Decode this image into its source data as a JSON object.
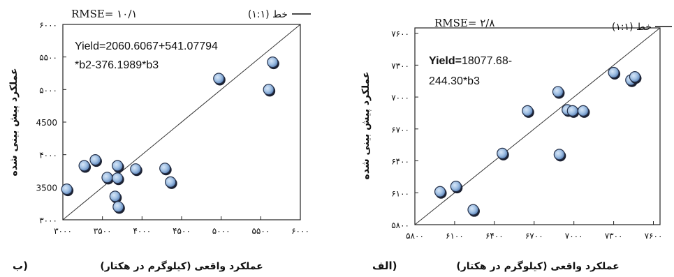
{
  "line_label": "خط (۱:۱)",
  "chart_data": [
    {
      "panel_label": "ب)",
      "type": "scatter",
      "title": "",
      "rmse_text": "RMSE= ۱۰/۱",
      "equation_lines": [
        "Yield=2060.6067+541.07794",
        "*b2-376.1989*b3"
      ],
      "equation_bold_prefix": "",
      "xlabel": "عملکرد واقعی (کیلوگرم در هکتار)",
      "ylabel": "عملکرد پیش بینی شده",
      "xlim": [
        3000,
        6000
      ],
      "ylim": [
        3000,
        6000
      ],
      "xticks": [
        3000,
        3500,
        4000,
        4500,
        5000,
        5500,
        6000
      ],
      "xtick_labels": [
        "۳۰۰۰",
        "۳۵۰۰",
        "۴۰۰۰",
        "۴۵۰۰",
        "۵۰۰۰",
        "۵۵۰۰",
        "۶۰۰۰"
      ],
      "yticks": [
        3000,
        3500,
        4000,
        4500,
        5000,
        5500,
        6000
      ],
      "ytick_labels": [
        "۳۰۰۰",
        "3500",
        "۴۰۰۰",
        "4500",
        "۵۰۰۰",
        "۵۵۰۰",
        "۶۰۰۰"
      ],
      "points": [
        {
          "x": 3050,
          "y": 3470
        },
        {
          "x": 3270,
          "y": 3830
        },
        {
          "x": 3410,
          "y": 3920
        },
        {
          "x": 3560,
          "y": 3650
        },
        {
          "x": 3690,
          "y": 3830
        },
        {
          "x": 3690,
          "y": 3640
        },
        {
          "x": 3660,
          "y": 3360
        },
        {
          "x": 3700,
          "y": 3200
        },
        {
          "x": 3920,
          "y": 3780
        },
        {
          "x": 4290,
          "y": 3790
        },
        {
          "x": 4360,
          "y": 3580
        },
        {
          "x": 4970,
          "y": 5170
        },
        {
          "x": 5600,
          "y": 5000
        },
        {
          "x": 5650,
          "y": 5420
        }
      ]
    },
    {
      "panel_label": "الف)",
      "type": "scatter",
      "title": "",
      "rmse_text": "RMSE= ۲/۸",
      "equation_lines": [
        "18077.68-",
        "244.30*b3"
      ],
      "equation_bold_prefix": "Yield=",
      "xlabel": "عملکرد واقعی (کیلوگرم در هکتار)",
      "ylabel": "عملکرد پیش بینی شده",
      "xlim": [
        5800,
        7650
      ],
      "ylim": [
        5800,
        7650
      ],
      "xticks": [
        5800,
        6100,
        6400,
        6700,
        7000,
        7300,
        7600
      ],
      "xtick_labels": [
        "۵۸۰۰",
        "۶۱۰۰",
        "۶۴۰۰",
        "۶۷۰۰",
        "۷۰۰۰",
        "۷۳۰۰",
        "۷۶۰۰"
      ],
      "yticks": [
        5800,
        6100,
        6400,
        6700,
        7000,
        7300,
        7600
      ],
      "ytick_labels": [
        "۵۸۰۰",
        "۶۱۰۰",
        "۶۴۰۰",
        "۶۷۰۰",
        "۷۰۰۰",
        "۷۳۰۰",
        "۷۶۰۰"
      ],
      "points": [
        {
          "x": 5990,
          "y": 6110
        },
        {
          "x": 6110,
          "y": 6160
        },
        {
          "x": 6240,
          "y": 5940
        },
        {
          "x": 6460,
          "y": 6470
        },
        {
          "x": 6650,
          "y": 6870
        },
        {
          "x": 6890,
          "y": 6460
        },
        {
          "x": 6880,
          "y": 7050
        },
        {
          "x": 6950,
          "y": 6880
        },
        {
          "x": 6990,
          "y": 6870
        },
        {
          "x": 7070,
          "y": 6870
        },
        {
          "x": 7300,
          "y": 7230
        },
        {
          "x": 7430,
          "y": 7160
        },
        {
          "x": 7460,
          "y": 7190
        }
      ]
    }
  ]
}
